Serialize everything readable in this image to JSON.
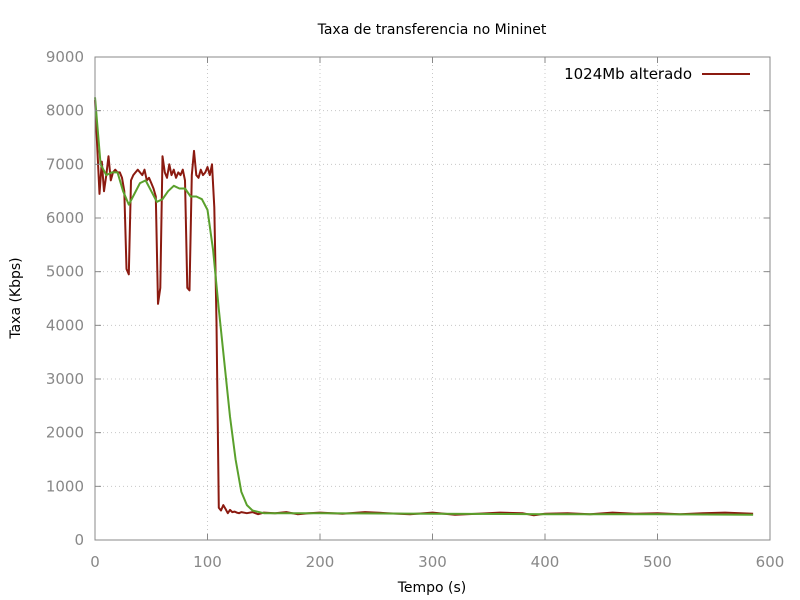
{
  "chart_data": {
    "type": "line",
    "title": "Taxa de transferencia no Mininet",
    "xlabel": "Tempo (s)",
    "ylabel": "Taxa (Kbps)",
    "xlim": [
      0,
      600
    ],
    "ylim": [
      0,
      9000
    ],
    "xticks": [
      0,
      100,
      200,
      300,
      400,
      500,
      600
    ],
    "yticks": [
      0,
      1000,
      2000,
      3000,
      4000,
      5000,
      6000,
      7000,
      8000,
      9000
    ],
    "grid": true,
    "legend_position": "top-right",
    "series": [
      {
        "name": "1024Mb alterado",
        "color": "#8b1a10",
        "x": [
          0,
          2,
          4,
          6,
          8,
          10,
          12,
          14,
          16,
          18,
          20,
          22,
          24,
          26,
          28,
          30,
          32,
          34,
          36,
          38,
          40,
          42,
          44,
          46,
          48,
          50,
          52,
          54,
          56,
          58,
          60,
          62,
          64,
          66,
          68,
          70,
          72,
          74,
          76,
          78,
          80,
          82,
          84,
          86,
          88,
          90,
          92,
          94,
          96,
          98,
          100,
          102,
          104,
          106,
          108,
          110,
          112,
          114,
          116,
          118,
          120,
          122,
          124,
          126,
          128,
          130,
          135,
          140,
          145,
          150,
          160,
          170,
          180,
          190,
          200,
          220,
          240,
          260,
          280,
          300,
          320,
          340,
          360,
          380,
          390,
          400,
          420,
          440,
          460,
          480,
          500,
          520,
          540,
          560,
          585
        ],
        "values": [
          8200,
          7300,
          6450,
          7050,
          6500,
          6800,
          7150,
          6700,
          6850,
          6900,
          6850,
          6850,
          6750,
          6500,
          5050,
          4950,
          6700,
          6800,
          6850,
          6900,
          6850,
          6800,
          6900,
          6700,
          6750,
          6650,
          6550,
          6400,
          4400,
          4700,
          7150,
          6850,
          6750,
          7000,
          6800,
          6900,
          6750,
          6850,
          6800,
          6900,
          6700,
          4700,
          4650,
          6800,
          7250,
          6800,
          6750,
          6900,
          6800,
          6850,
          6950,
          6800,
          7000,
          6200,
          4050,
          600,
          550,
          650,
          580,
          500,
          560,
          520,
          530,
          510,
          500,
          520,
          500,
          520,
          480,
          510,
          500,
          520,
          480,
          500,
          510,
          490,
          520,
          500,
          480,
          510,
          470,
          490,
          510,
          500,
          460,
          490,
          500,
          480,
          510,
          490,
          500,
          480,
          500,
          510,
          490
        ]
      },
      {
        "color": "#5aa02c",
        "x": [
          0,
          5,
          10,
          15,
          20,
          25,
          30,
          35,
          40,
          45,
          50,
          55,
          60,
          65,
          70,
          75,
          80,
          85,
          90,
          95,
          100,
          105,
          110,
          115,
          120,
          125,
          130,
          135,
          140,
          150,
          200,
          300,
          400,
          500,
          585
        ],
        "values": [
          8250,
          7000,
          6800,
          6850,
          6850,
          6500,
          6250,
          6450,
          6650,
          6700,
          6500,
          6300,
          6350,
          6500,
          6600,
          6550,
          6550,
          6400,
          6400,
          6350,
          6150,
          5400,
          4300,
          3300,
          2300,
          1500,
          900,
          650,
          550,
          500,
          500,
          490,
          480,
          480,
          470
        ]
      }
    ]
  }
}
